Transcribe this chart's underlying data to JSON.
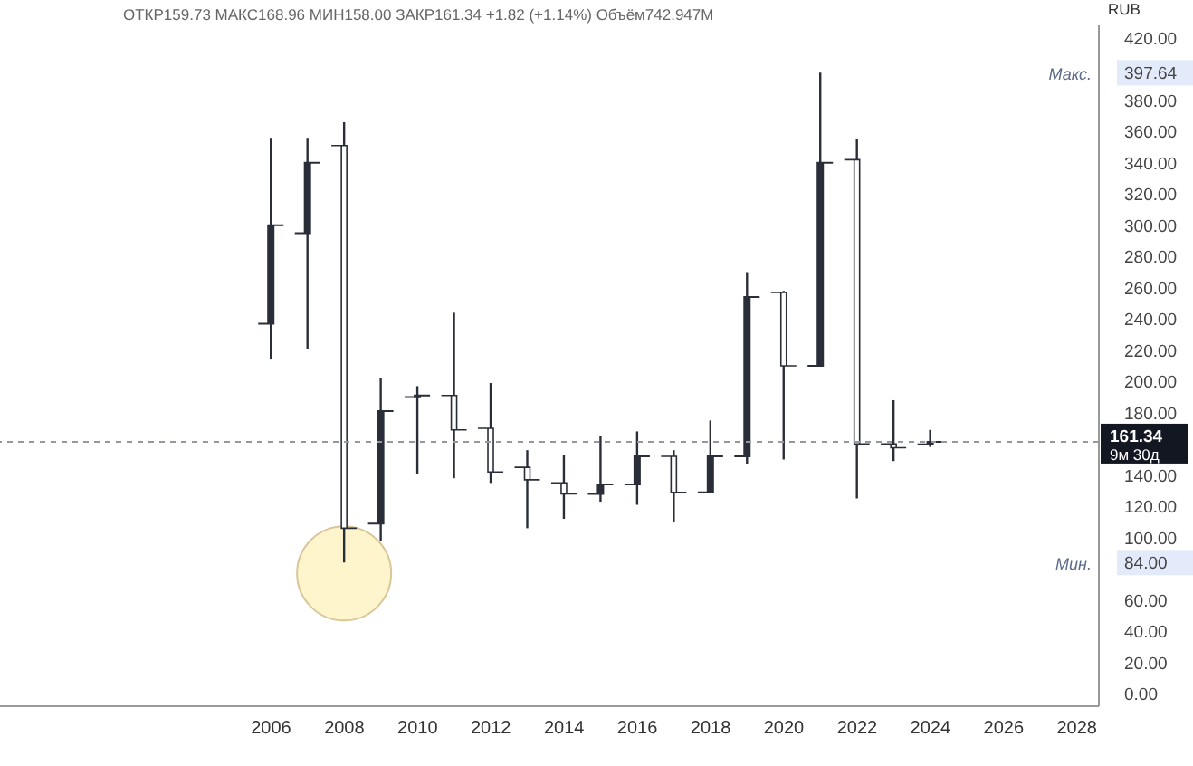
{
  "chart_data": {
    "type": "candlestick",
    "color": "#2a2e39",
    "x": [
      2006,
      2007,
      2008,
      2009,
      2010,
      2011,
      2012,
      2013,
      2014,
      2015,
      2016,
      2017,
      2018,
      2019,
      2020,
      2021,
      2022,
      2023,
      2024
    ],
    "ohlc": [
      [
        237,
        356,
        214,
        300
      ],
      [
        295,
        356,
        221,
        340
      ],
      [
        351,
        366,
        84,
        106
      ],
      [
        109,
        202,
        98,
        181
      ],
      [
        190,
        197,
        141,
        191
      ],
      [
        191,
        244,
        138,
        169
      ],
      [
        170,
        199,
        135,
        142
      ],
      [
        145,
        156,
        106,
        137
      ],
      [
        135,
        153,
        112,
        128
      ],
      [
        128,
        165,
        123,
        134
      ],
      [
        134,
        168,
        121,
        152
      ],
      [
        152,
        156,
        110,
        129
      ],
      [
        129,
        175,
        129,
        152
      ],
      [
        152,
        270,
        147,
        254
      ],
      [
        257,
        258,
        150,
        210
      ],
      [
        210,
        397.64,
        210,
        340
      ],
      [
        342,
        355,
        125,
        160
      ],
      [
        160,
        188,
        149,
        157.5
      ],
      [
        159.73,
        168.96,
        158,
        161.34
      ]
    ],
    "xlim": [
      1998.6,
      2028.6
    ],
    "xticks": [
      2006,
      2008,
      2010,
      2012,
      2014,
      2016,
      2018,
      2020,
      2022,
      2024,
      2026,
      2028
    ],
    "ylim": [
      -8,
      428
    ],
    "yticks": [
      {
        "value": 0,
        "label": "0.00"
      },
      {
        "value": 20,
        "label": "20.00"
      },
      {
        "value": 40,
        "label": "40.00"
      },
      {
        "value": 60,
        "label": "60.00"
      },
      {
        "value": 84,
        "label": "84.00"
      },
      {
        "value": 100,
        "label": "100.00"
      },
      {
        "value": 120,
        "label": "120.00"
      },
      {
        "value": 140,
        "label": "140.00"
      },
      {
        "value": 180,
        "label": "180.00"
      },
      {
        "value": 200,
        "label": "200.00"
      },
      {
        "value": 220,
        "label": "220.00"
      },
      {
        "value": 240,
        "label": "240.00"
      },
      {
        "value": 260,
        "label": "260.00"
      },
      {
        "value": 280,
        "label": "280.00"
      },
      {
        "value": 300,
        "label": "300.00"
      },
      {
        "value": 320,
        "label": "320.00"
      },
      {
        "value": 340,
        "label": "340.00"
      },
      {
        "value": 360,
        "label": "360.00"
      },
      {
        "value": 380,
        "label": "380.00"
      },
      {
        "value": 397.64,
        "label": "397.64"
      },
      {
        "value": 420,
        "label": "420.00"
      }
    ],
    "ref_lines": [
      {
        "axis": "y",
        "value": 161.34,
        "label": "161.34",
        "color": "#9598a1",
        "line_style": "dashed"
      }
    ],
    "annotations": [
      "ОТКР159.73 МАКС168.96 МИН158.00 ЗАКР161.34 +1.82 (+1.14%) Объём742.947M",
      "RUB",
      "9м 30д",
      "Макс.",
      "Мин."
    ]
  }
}
